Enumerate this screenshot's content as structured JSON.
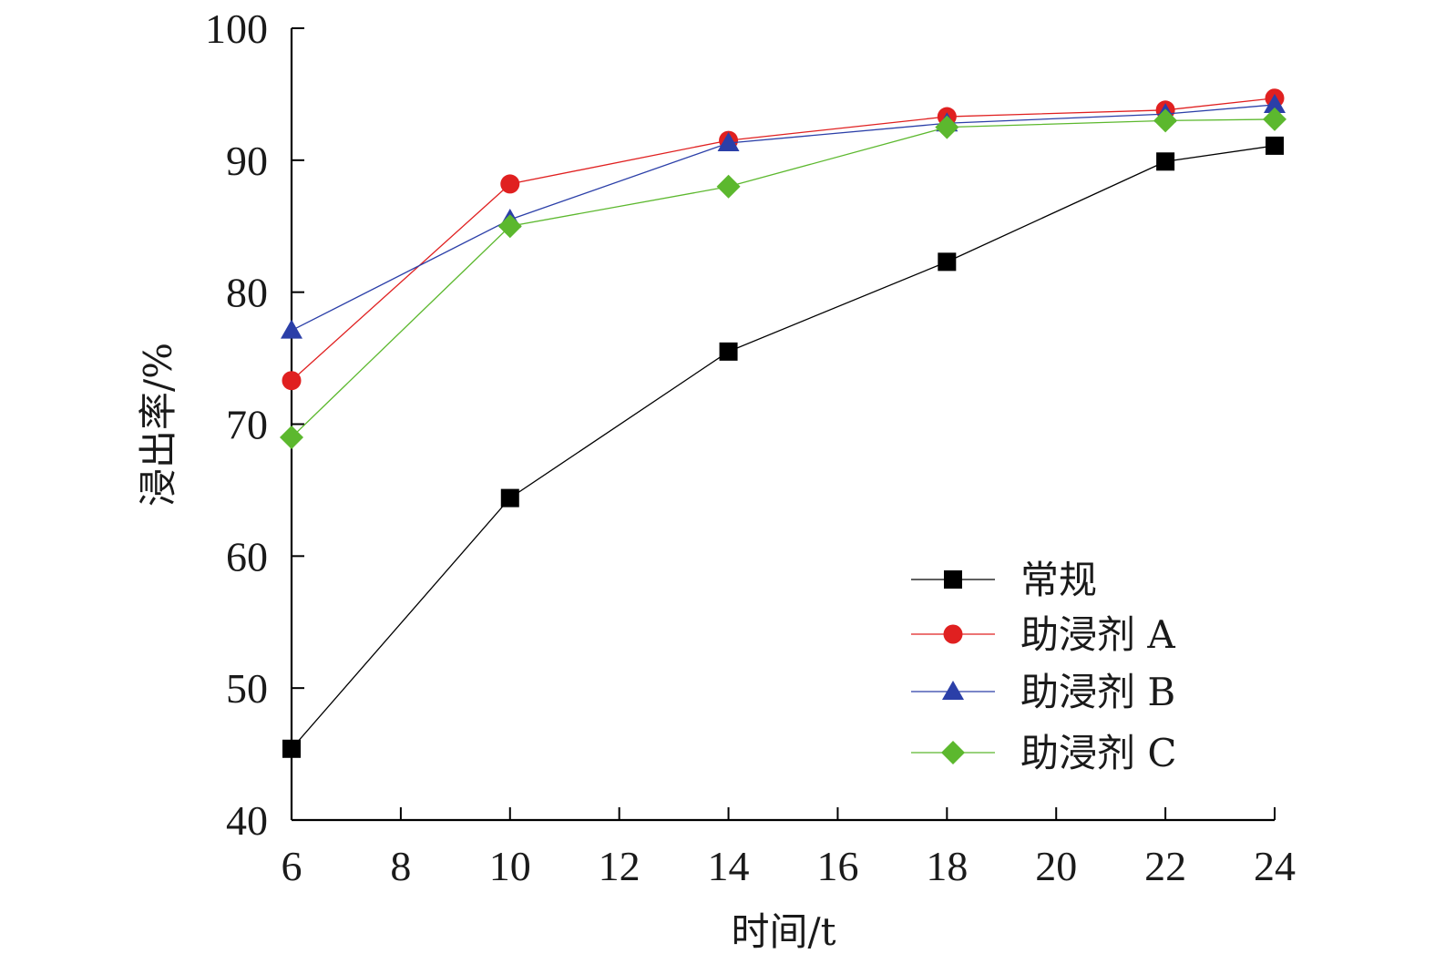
{
  "chart_data": {
    "type": "line",
    "xlabel": "时间/t",
    "ylabel": "浸出率/%",
    "xlim": [
      6,
      24
    ],
    "ylim": [
      40,
      100
    ],
    "xticks": [
      "6",
      "8",
      "10",
      "12",
      "14",
      "16",
      "18",
      "20",
      "22",
      "24"
    ],
    "yticks": [
      "40",
      "50",
      "60",
      "70",
      "80",
      "90",
      "100"
    ],
    "x": [
      6,
      10,
      14,
      18,
      22,
      24
    ],
    "grid": false,
    "legend_position": "bottom-right",
    "series": [
      {
        "name": "常规",
        "marker": "square",
        "color": "#000000",
        "values": [
          45.4,
          64.4,
          75.5,
          82.3,
          89.9,
          91.1
        ]
      },
      {
        "name": "助浸剂 A",
        "marker": "circle",
        "color": "#e02020",
        "values": [
          73.3,
          88.2,
          91.5,
          93.3,
          93.8,
          94.7
        ]
      },
      {
        "name": "助浸剂 B",
        "marker": "triangle",
        "color": "#2b3fa8",
        "values": [
          77.1,
          85.5,
          91.3,
          92.8,
          93.5,
          94.2
        ]
      },
      {
        "name": "助浸剂 C",
        "marker": "diamond",
        "color": "#5cb82e",
        "values": [
          69.0,
          85.0,
          88.0,
          92.5,
          93.0,
          93.1
        ]
      }
    ]
  }
}
